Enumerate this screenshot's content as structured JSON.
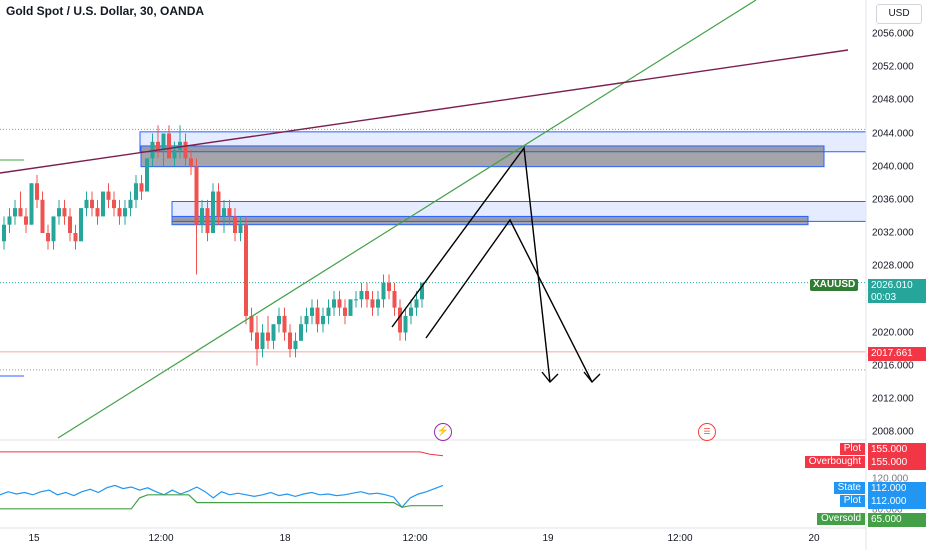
{
  "header": {
    "title": "Gold Spot / U.S. Dollar, 30, OANDA",
    "currency_button": "USD"
  },
  "icons": {
    "flash": "lightning-icon",
    "flag": "us-flag-icon"
  },
  "chart_data": {
    "type": "candlestick",
    "symbol": "XAUUSD",
    "price_axis": {
      "ticks": [
        "2056.000",
        "2052.000",
        "2048.000",
        "2044.000",
        "2040.000",
        "2036.000",
        "2032.000",
        "2028.000",
        "2024.000",
        "2020.000",
        "2016.000",
        "2012.000",
        "2008.000"
      ],
      "range": [
        2007,
        2058
      ]
    },
    "time_axis": {
      "labels": [
        "15",
        "12:00",
        "18",
        "12:00",
        "19",
        "12:00",
        "20"
      ]
    },
    "last_price": {
      "symbol": "XAUUSD",
      "value": "2026.010",
      "countdown": "00:03"
    },
    "line_price": "2017.661",
    "candles": [
      [
        2031,
        2034,
        2030,
        2033
      ],
      [
        2033,
        2035,
        2032,
        2034
      ],
      [
        2034,
        2036,
        2033,
        2035
      ],
      [
        2035,
        2037,
        2034,
        2034
      ],
      [
        2034,
        2035,
        2032,
        2033
      ],
      [
        2033,
        2038,
        2033,
        2038
      ],
      [
        2038,
        2039,
        2035,
        2036
      ],
      [
        2036,
        2037,
        2032,
        2032
      ],
      [
        2032,
        2033,
        2030,
        2031
      ],
      [
        2031,
        2034,
        2030,
        2034
      ],
      [
        2034,
        2036,
        2033,
        2035
      ],
      [
        2035,
        2036,
        2033,
        2034
      ],
      [
        2034,
        2035,
        2031,
        2032
      ],
      [
        2032,
        2033,
        2030,
        2031
      ],
      [
        2031,
        2035,
        2031,
        2035
      ],
      [
        2035,
        2037,
        2034,
        2036
      ],
      [
        2036,
        2037,
        2034,
        2035
      ],
      [
        2035,
        2036,
        2033,
        2034
      ],
      [
        2034,
        2037,
        2034,
        2037
      ],
      [
        2037,
        2038,
        2035,
        2036
      ],
      [
        2036,
        2037,
        2034,
        2035
      ],
      [
        2035,
        2036,
        2033,
        2034
      ],
      [
        2034,
        2036,
        2033,
        2035
      ],
      [
        2035,
        2037,
        2034,
        2036
      ],
      [
        2036,
        2039,
        2035,
        2038
      ],
      [
        2038,
        2039,
        2036,
        2037
      ],
      [
        2037,
        2041,
        2037,
        2041
      ],
      [
        2041,
        2044,
        2040,
        2043
      ],
      [
        2043,
        2045,
        2041,
        2042
      ],
      [
        2042,
        2044,
        2040,
        2044
      ],
      [
        2044,
        2045,
        2041,
        2041
      ],
      [
        2041,
        2043,
        2040,
        2042
      ],
      [
        2042,
        2045,
        2041,
        2043
      ],
      [
        2043,
        2044,
        2040,
        2041
      ],
      [
        2041,
        2042,
        2039,
        2040
      ],
      [
        2040,
        2041,
        2027,
        2033
      ],
      [
        2033,
        2036,
        2032,
        2035
      ],
      [
        2035,
        2036,
        2031,
        2032
      ],
      [
        2032,
        2038,
        2032,
        2037
      ],
      [
        2037,
        2038,
        2033,
        2034
      ],
      [
        2034,
        2036,
        2032,
        2035
      ],
      [
        2035,
        2036,
        2033,
        2034
      ],
      [
        2034,
        2035,
        2031,
        2032
      ],
      [
        2032,
        2034,
        2031,
        2033
      ],
      [
        2033,
        2034,
        2021,
        2022
      ],
      [
        2022,
        2023,
        2019,
        2020
      ],
      [
        2020,
        2022,
        2016,
        2018
      ],
      [
        2018,
        2021,
        2017,
        2020
      ],
      [
        2020,
        2022,
        2018,
        2019
      ],
      [
        2019,
        2021,
        2018,
        2021
      ],
      [
        2021,
        2023,
        2020,
        2022
      ],
      [
        2022,
        2023,
        2019,
        2020
      ],
      [
        2020,
        2021,
        2017,
        2018
      ],
      [
        2018,
        2020,
        2017,
        2019
      ],
      [
        2019,
        2022,
        2019,
        2021
      ],
      [
        2021,
        2023,
        2020,
        2022
      ],
      [
        2022,
        2024,
        2021,
        2023
      ],
      [
        2023,
        2024,
        2020,
        2021
      ],
      [
        2021,
        2023,
        2020,
        2022
      ],
      [
        2022,
        2024,
        2021,
        2023
      ],
      [
        2023,
        2025,
        2022,
        2024
      ],
      [
        2024,
        2025,
        2022,
        2023
      ],
      [
        2023,
        2024,
        2021,
        2022
      ],
      [
        2022,
        2024,
        2022,
        2024
      ],
      [
        2024,
        2025,
        2023,
        2024
      ],
      [
        2024,
        2026,
        2023,
        2025
      ],
      [
        2025,
        2026,
        2023,
        2024
      ],
      [
        2024,
        2025,
        2022,
        2023
      ],
      [
        2023,
        2025,
        2022,
        2024
      ],
      [
        2024,
        2027,
        2023,
        2026
      ],
      [
        2026,
        2027,
        2024,
        2025
      ],
      [
        2025,
        2026,
        2022,
        2023
      ],
      [
        2023,
        2024,
        2019,
        2020
      ],
      [
        2020,
        2023,
        2019,
        2022
      ],
      [
        2022,
        2024,
        2021,
        2023
      ],
      [
        2023,
        2025,
        2022,
        2024
      ],
      [
        2024,
        2026,
        2023,
        2026
      ]
    ],
    "zones": [
      {
        "top": 2044.2,
        "bottom": 2041.8
      },
      {
        "top": 2042.5,
        "bottom": 2040.0
      },
      {
        "top": 2035.8,
        "bottom": 2033.4
      },
      {
        "top": 2034.0,
        "bottom": 2033.0
      }
    ],
    "indicator": {
      "rows": [
        {
          "label": "Plot",
          "value": "155.000"
        },
        {
          "label": "Overbought",
          "value": "155.000"
        },
        {
          "label": "State",
          "value": "112.000"
        },
        {
          "label": "Plot",
          "value": "112.000"
        },
        {
          "label": "Oversold",
          "value": "65.000"
        }
      ],
      "axis_partial": [
        "120.000",
        "80.000"
      ],
      "series": [
        100,
        104,
        101,
        103,
        100,
        104,
        106,
        100,
        103,
        99,
        104,
        107,
        103,
        109,
        112,
        108,
        110,
        106,
        109,
        104,
        100,
        106,
        101,
        105,
        110,
        104,
        96,
        104,
        100,
        102,
        100,
        98,
        100,
        103,
        99,
        101,
        98,
        101,
        103,
        100,
        101,
        99,
        100,
        102,
        104,
        101,
        102,
        100,
        97,
        84,
        96,
        101,
        104,
        108,
        112
      ],
      "signal": [
        82,
        82,
        82,
        82,
        82,
        82,
        82,
        82,
        82,
        82,
        82,
        82,
        82,
        82,
        82,
        82,
        82,
        96,
        100,
        100,
        100,
        100,
        100,
        100,
        90,
        90,
        90,
        90,
        90,
        90,
        90,
        90,
        90,
        90,
        90,
        90,
        90,
        90,
        90,
        90,
        90,
        90,
        90,
        90,
        90,
        90,
        90,
        90,
        90,
        84,
        86,
        86,
        86,
        86,
        86
      ]
    }
  }
}
